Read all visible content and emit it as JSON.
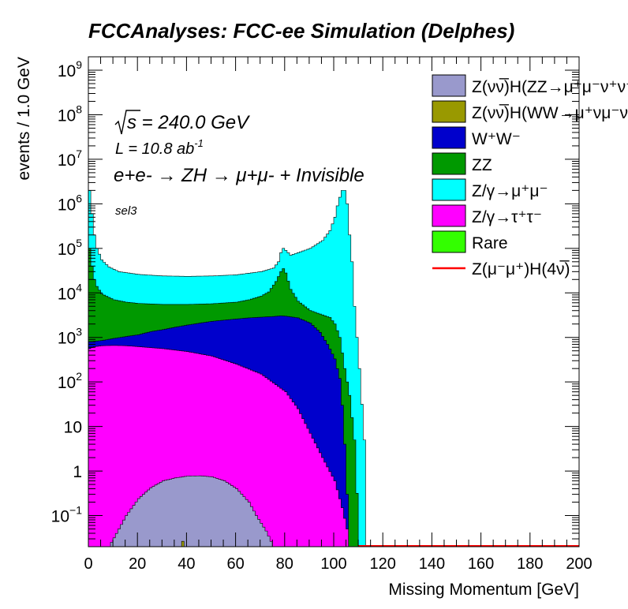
{
  "chart_data": {
    "type": "area",
    "stacked": true,
    "title": "FCCAnalyses: FCC-ee Simulation (Delphes)",
    "xlabel": "Missing Momentum [GeV]",
    "ylabel": "events / 1.0 GeV",
    "xlim": [
      0,
      200
    ],
    "ylim": [
      0.02,
      2000000000
    ],
    "yscale": "log",
    "x_ticks": [
      "0",
      "20",
      "40",
      "60",
      "80",
      "100",
      "120",
      "140",
      "160",
      "180",
      "200"
    ],
    "y_ticks": [
      {
        "value": 0.1,
        "label": "10",
        "exp": "−1"
      },
      {
        "value": 1,
        "label": "1",
        "exp": ""
      },
      {
        "value": 10,
        "label": "10",
        "exp": ""
      },
      {
        "value": 100,
        "label": "10",
        "exp": "2"
      },
      {
        "value": 1000,
        "label": "10",
        "exp": "3"
      },
      {
        "value": 10000,
        "label": "10",
        "exp": "4"
      },
      {
        "value": 100000,
        "label": "10",
        "exp": "5"
      },
      {
        "value": 1000000,
        "label": "10",
        "exp": "6"
      },
      {
        "value": 10000000,
        "label": "10",
        "exp": "7"
      },
      {
        "value": 100000000,
        "label": "10",
        "exp": "8"
      },
      {
        "value": 1000000000,
        "label": "10",
        "exp": "9"
      }
    ],
    "annotations": {
      "sqrt_s": "s = 240.0 GeV",
      "lumi": "L = 10.8 ab",
      "lumi_exp": "-1",
      "process": "e+e- → ZH → μ+μ- + Invisible",
      "selection": "sel3"
    },
    "legend_position": "top-right",
    "series": [
      {
        "name": "Z(νν̅)H(ZZ→μ⁺μ⁻ν⁺ν⁻)",
        "color": "#9999cc",
        "points": [
          [
            8,
            0.02
          ],
          [
            12,
            0.05
          ],
          [
            15,
            0.1
          ],
          [
            20,
            0.24
          ],
          [
            25,
            0.42
          ],
          [
            30,
            0.6
          ],
          [
            35,
            0.7
          ],
          [
            40,
            0.77
          ],
          [
            45,
            0.78
          ],
          [
            50,
            0.74
          ],
          [
            55,
            0.6
          ],
          [
            60,
            0.4
          ],
          [
            65,
            0.2
          ],
          [
            68,
            0.1
          ],
          [
            72,
            0.045
          ],
          [
            75,
            0.02
          ]
        ]
      },
      {
        "name": "Z(νν̅)H(WW→μ⁺νμ⁻ν)",
        "color": "#999900",
        "points": [
          [
            37,
            0.02
          ],
          [
            37.5,
            0.035
          ],
          [
            38.5,
            0.02
          ],
          [
            40,
            0.02
          ],
          [
            40.5,
            0.03
          ],
          [
            41,
            0.02
          ],
          [
            46,
            0.02
          ],
          [
            46.5,
            0.028
          ],
          [
            47,
            0.02
          ],
          [
            51,
            0.02
          ],
          [
            51.5,
            0.03
          ],
          [
            52,
            0.02
          ]
        ]
      },
      {
        "name": "W⁺W⁻",
        "color": "#0000cc",
        "points": [
          [
            0,
            800
          ],
          [
            5,
            850
          ],
          [
            10,
            950
          ],
          [
            15,
            1050
          ],
          [
            20,
            1150
          ],
          [
            25,
            1350
          ],
          [
            30,
            1500
          ],
          [
            35,
            1700
          ],
          [
            40,
            1900
          ],
          [
            45,
            2100
          ],
          [
            50,
            2300
          ],
          [
            55,
            2450
          ],
          [
            60,
            2600
          ],
          [
            65,
            2750
          ],
          [
            70,
            2850
          ],
          [
            75,
            2950
          ],
          [
            78,
            3050
          ],
          [
            80,
            3000
          ],
          [
            85,
            2750
          ],
          [
            90,
            2100
          ],
          [
            94,
            1300
          ],
          [
            97,
            700
          ],
          [
            100,
            330
          ],
          [
            102,
            120
          ],
          [
            103,
            30
          ],
          [
            104,
            4
          ],
          [
            105,
            0.3
          ],
          [
            106,
            0.02
          ]
        ]
      },
      {
        "name": "ZZ",
        "color": "#009900",
        "points": [
          [
            0,
            100000
          ],
          [
            1,
            40000
          ],
          [
            2,
            20000
          ],
          [
            3,
            14000
          ],
          [
            5,
            9500
          ],
          [
            10,
            7000
          ],
          [
            15,
            6200
          ],
          [
            20,
            5800
          ],
          [
            30,
            5500
          ],
          [
            40,
            5500
          ],
          [
            50,
            5700
          ],
          [
            60,
            6200
          ],
          [
            65,
            7000
          ],
          [
            70,
            8500
          ],
          [
            73,
            10500
          ],
          [
            76,
            18000
          ],
          [
            78,
            30000
          ],
          [
            79,
            35000
          ],
          [
            80,
            28000
          ],
          [
            82,
            12000
          ],
          [
            85,
            6500
          ],
          [
            90,
            4000
          ],
          [
            95,
            3200
          ],
          [
            98,
            2800
          ],
          [
            100,
            2000
          ],
          [
            102,
            1000
          ],
          [
            104,
            200
          ],
          [
            106,
            50
          ],
          [
            108,
            5
          ],
          [
            110,
            0.02
          ]
        ]
      },
      {
        "name": "Z/γ→μ⁺μ⁻",
        "color": "#00ffff",
        "points": [
          [
            0,
            2000000
          ],
          [
            1,
            600000
          ],
          [
            2,
            200000
          ],
          [
            3,
            100000
          ],
          [
            5,
            55000
          ],
          [
            8,
            38000
          ],
          [
            12,
            30000
          ],
          [
            20,
            26000
          ],
          [
            30,
            24000
          ],
          [
            40,
            23500
          ],
          [
            50,
            24000
          ],
          [
            60,
            25500
          ],
          [
            70,
            30000
          ],
          [
            75,
            36000
          ],
          [
            77,
            50000
          ],
          [
            78,
            80000
          ],
          [
            79,
            100000
          ],
          [
            80,
            90000
          ],
          [
            82,
            70000
          ],
          [
            85,
            80000
          ],
          [
            90,
            100000
          ],
          [
            95,
            150000
          ],
          [
            98,
            250000
          ],
          [
            100,
            500000
          ],
          [
            101,
            900000
          ],
          [
            102,
            1400000
          ],
          [
            103,
            2000000
          ],
          [
            104,
            2000000
          ],
          [
            105,
            1000000
          ],
          [
            106,
            200000
          ],
          [
            107,
            50000
          ],
          [
            108,
            5000
          ],
          [
            110,
            200
          ],
          [
            112,
            5
          ],
          [
            113,
            0.02
          ]
        ]
      },
      {
        "name": "Z/γ→τ⁺τ⁻",
        "color": "#ff00ff",
        "points": [
          [
            0,
            560
          ],
          [
            2,
            620
          ],
          [
            5,
            650
          ],
          [
            10,
            660
          ],
          [
            15,
            650
          ],
          [
            20,
            620
          ],
          [
            30,
            560
          ],
          [
            40,
            480
          ],
          [
            50,
            380
          ],
          [
            60,
            250
          ],
          [
            70,
            150
          ],
          [
            80,
            60
          ],
          [
            85,
            25
          ],
          [
            90,
            7
          ],
          [
            95,
            2
          ],
          [
            100,
            0.6
          ],
          [
            103,
            0.15
          ],
          [
            105,
            0.05
          ],
          [
            106,
            0.02
          ]
        ]
      },
      {
        "name": "Rare",
        "color": "#33ff00",
        "points": [
          [
            0,
            0.02
          ],
          [
            110,
            0.02
          ]
        ]
      },
      {
        "name": "Z(μ⁻μ⁺)H(4ν̅)",
        "color": "#ff0000",
        "style": "line",
        "points": [
          [
            110,
            0.02
          ],
          [
            200,
            0.02
          ]
        ]
      }
    ]
  }
}
